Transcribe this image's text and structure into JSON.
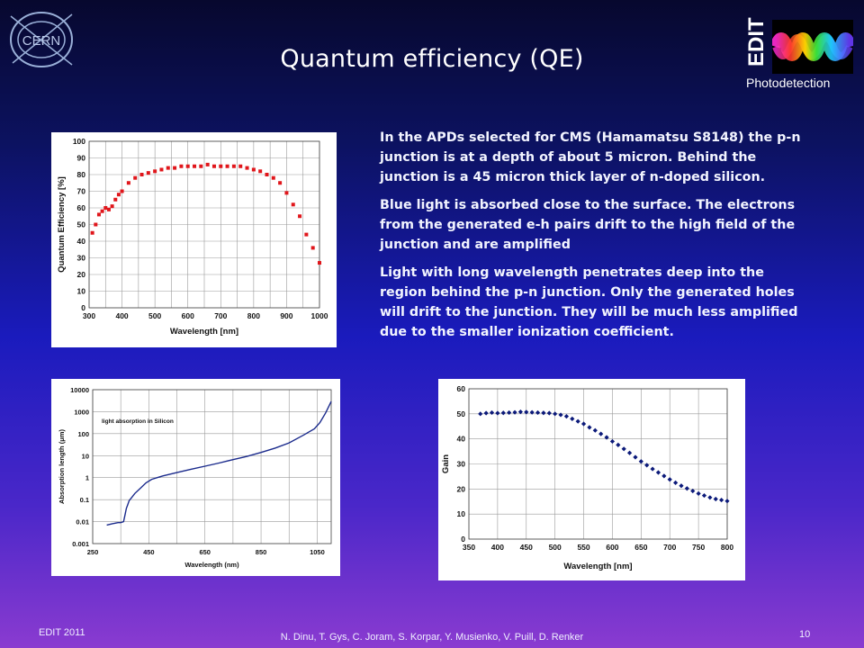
{
  "slide": {
    "title": "Quantum efficiency (QE)",
    "logo_left_text": "CERN",
    "logo_right_text": "EDIT",
    "logo_right_subtitle": "Photodetection"
  },
  "body_paragraphs": [
    "In the APDs selected for CMS (Hamamatsu S8148) the p-n junction is at a depth of about 5 micron. Behind the junction is a 45 micron thick layer of n-doped silicon.",
    "Blue light is absorbed close to the surface. The electrons from the generated e-h pairs drift to the high field of the junction and are amplified",
    "Light with long wavelength penetrates deep into the region behind the p-n junction. Only the generated holes will drift to the junction. They will be much less amplified due to the smaller ionization coefficient."
  ],
  "footer": {
    "left": "EDIT 2011",
    "center": "N. Dinu, T. Gys, C. Joram, S. Korpar, Y. Musienko, V. Puill, D. Renker",
    "page": "10"
  },
  "chart_data": [
    {
      "type": "scatter",
      "xlabel": "Wavelength [nm]",
      "ylabel": "Quantum Efficiency [%]",
      "xlim": [
        300,
        1000
      ],
      "ylim": [
        0,
        100
      ],
      "xticks": [
        300,
        400,
        500,
        600,
        700,
        800,
        900,
        1000
      ],
      "yticks": [
        0,
        10,
        20,
        30,
        40,
        50,
        60,
        70,
        80,
        90,
        100
      ],
      "grid": true,
      "marker_color": "#e0161b",
      "x": [
        310,
        320,
        330,
        340,
        350,
        360,
        370,
        380,
        390,
        400,
        420,
        440,
        460,
        480,
        500,
        520,
        540,
        560,
        580,
        600,
        620,
        640,
        660,
        680,
        700,
        720,
        740,
        760,
        780,
        800,
        820,
        840,
        860,
        880,
        900,
        920,
        940,
        960,
        980,
        1000
      ],
      "y": [
        45,
        50,
        56,
        58,
        60,
        59,
        61,
        65,
        68,
        70,
        75,
        78,
        80,
        81,
        82,
        83,
        84,
        84,
        85,
        85,
        85,
        85,
        86,
        85,
        85,
        85,
        85,
        85,
        84,
        83,
        82,
        80,
        78,
        75,
        69,
        62,
        55,
        44,
        36,
        27
      ]
    },
    {
      "type": "line",
      "annotation": "light absorption in Silicon",
      "xlabel": "Wavelength (nm)",
      "ylabel": "Absorption length (μm)",
      "xlim": [
        250,
        1100
      ],
      "ylim": [
        0.001,
        10000
      ],
      "yscale": "log",
      "xticks": [
        250,
        450,
        650,
        850,
        1050
      ],
      "yticks": [
        0.001,
        0.01,
        0.1,
        1,
        10,
        100,
        1000,
        10000
      ],
      "ytick_labels": [
        "0.001",
        "0.01",
        "0.1",
        "1",
        "10",
        "100",
        "1000",
        "10000"
      ],
      "grid": true,
      "line_color": "#1a2a8c",
      "x": [
        300,
        320,
        340,
        350,
        360,
        365,
        370,
        375,
        380,
        390,
        400,
        420,
        440,
        460,
        480,
        500,
        550,
        600,
        650,
        700,
        750,
        800,
        850,
        900,
        950,
        1000,
        1040,
        1060,
        1080,
        1100
      ],
      "y": [
        0.007,
        0.008,
        0.009,
        0.009,
        0.01,
        0.02,
        0.04,
        0.06,
        0.09,
        0.13,
        0.19,
        0.33,
        0.58,
        0.84,
        1.0,
        1.2,
        1.7,
        2.4,
        3.3,
        4.6,
        6.6,
        9.3,
        14,
        22,
        38,
        84,
        165,
        320,
        880,
        2900
      ]
    },
    {
      "type": "scatter",
      "xlabel": "Wavelength [nm]",
      "ylabel": "Gain",
      "xlim": [
        350,
        800
      ],
      "ylim": [
        0,
        60
      ],
      "xticks": [
        350,
        400,
        450,
        500,
        550,
        600,
        650,
        700,
        750,
        800
      ],
      "yticks": [
        0,
        10,
        20,
        30,
        40,
        50,
        60
      ],
      "grid": true,
      "marker_color": "#0c1a7a",
      "x": [
        370,
        380,
        390,
        400,
        410,
        420,
        430,
        440,
        450,
        460,
        470,
        480,
        490,
        500,
        510,
        520,
        530,
        540,
        550,
        560,
        570,
        580,
        590,
        600,
        610,
        620,
        630,
        640,
        650,
        660,
        670,
        680,
        690,
        700,
        710,
        720,
        730,
        740,
        750,
        760,
        770,
        780,
        790,
        800
      ],
      "y": [
        50,
        50.3,
        50.5,
        50.3,
        50.4,
        50.5,
        50.6,
        50.8,
        50.7,
        50.6,
        50.5,
        50.4,
        50.3,
        50,
        49.6,
        49,
        48,
        47,
        46,
        44.6,
        43.4,
        42,
        40.6,
        39,
        37.6,
        36,
        34.4,
        32.7,
        31,
        29.5,
        28,
        26.6,
        25.2,
        23.8,
        22.5,
        21.3,
        20.2,
        19.2,
        18.2,
        17.4,
        16.6,
        16,
        15.6,
        15.2
      ]
    }
  ]
}
